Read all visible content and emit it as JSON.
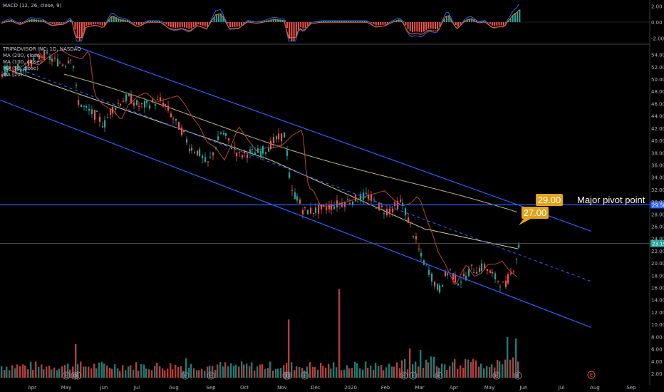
{
  "chart_data": {
    "type": "candlestick",
    "symbol_header": "TRIPADVISOR INC, 1D, NASDAQ",
    "indicator_legend": [
      "MA (200, close)",
      "MA (100, close)",
      "MA (50, close)",
      "MA (20)"
    ],
    "macd_label": "MACD (12, 26, close, 9)",
    "x_labels": [
      "Apr",
      "May",
      "Jun",
      "Jul",
      "Aug",
      "Sep",
      "Oct",
      "Nov",
      "Dec",
      "2020",
      "Feb",
      "Mar",
      "Apr",
      "May",
      "Jun",
      "Jul",
      "Aug",
      "Sep"
    ],
    "price_ticks": [
      "54.00",
      "52.00",
      "50.00",
      "48.00",
      "46.00",
      "44.00",
      "42.00",
      "40.00",
      "38.00",
      "36.00",
      "34.00",
      "32.00",
      "30.00",
      "28.00",
      "26.00",
      "24.00",
      "22.00",
      "20.00",
      "18.00",
      "16.00",
      "14.00",
      "12.00",
      "10.00",
      "8.00",
      "6.00",
      "4.00",
      "2.00"
    ],
    "ylim": [
      1.3,
      55.7
    ],
    "macd_ticks": [
      "2.00",
      "0.00",
      "-2.00"
    ],
    "macd_ylim": [
      -2.6,
      2.6
    ],
    "price_line_labels": [
      "29.50",
      "23.19"
    ],
    "price_levels": [
      29.5,
      23.19
    ],
    "annotations": {
      "pivot_top": "29.00",
      "pivot_bottom": "27.00",
      "pivot_text": "Major pivot point"
    },
    "event_markers": [
      "E",
      "D",
      "E",
      "E",
      "E",
      "E",
      "D",
      "E",
      "E",
      "E",
      "E",
      "E",
      "E"
    ],
    "future_event": "E",
    "colors": {
      "up": "#26a69a",
      "down": "#ef5350",
      "channel": "#2962ff",
      "ma200": "#bfb77e",
      "ma50": "#b5463c",
      "annotation": "#e0a31b"
    }
  }
}
